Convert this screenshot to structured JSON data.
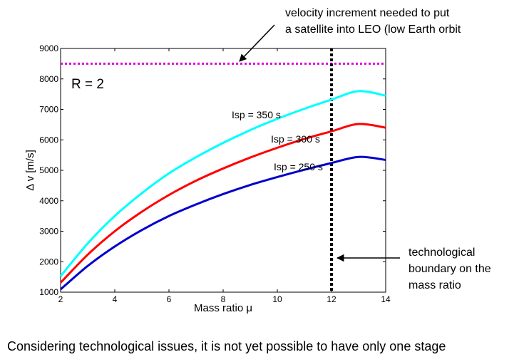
{
  "chart_data": {
    "type": "line",
    "xlabel": "Mass ratio μ",
    "ylabel": "Δ v [m/s]",
    "xlim": [
      2,
      14
    ],
    "ylim": [
      1000,
      9000
    ],
    "xticks": [
      2,
      4,
      6,
      8,
      10,
      12,
      14
    ],
    "yticks": [
      1000,
      2000,
      3000,
      4000,
      5000,
      6000,
      7000,
      8000,
      9000
    ],
    "grid": false,
    "parameter_label": "R = 2",
    "x": [
      2,
      3,
      4,
      5,
      6,
      7,
      8,
      9,
      10,
      11,
      12,
      13,
      14
    ],
    "series": [
      {
        "name": "Isp = 350 s",
        "color": "#00ffff",
        "values": [
          1525,
          2600,
          3500,
          4250,
          4900,
          5430,
          5900,
          6320,
          6690,
          7020,
          7320,
          7600,
          7450
        ]
      },
      {
        "name": "Isp = 300 s",
        "color": "#ff0000",
        "values": [
          1310,
          2230,
          3000,
          3640,
          4190,
          4660,
          5060,
          5420,
          5740,
          6030,
          6280,
          6520,
          6400
        ]
      },
      {
        "name": "Isp = 250 s",
        "color": "#0000cc",
        "values": [
          1090,
          1860,
          2500,
          3040,
          3500,
          3880,
          4220,
          4520,
          4780,
          5020,
          5240,
          5440,
          5340
        ]
      }
    ],
    "reference_lines": [
      {
        "orientation": "horizontal",
        "value": 8500,
        "color": "#dd00dd",
        "style": "dotted",
        "annotation": "velocity increment needed to put a satellite into LEO (low Earth orbit)",
        "annotation_lines": [
          "velocity increment needed to put",
          "a satellite into LEO (low Earth orbit"
        ]
      },
      {
        "orientation": "vertical",
        "value": 12,
        "color": "#000000",
        "style": "dotted",
        "annotation": "technological boundary on the mass ratio",
        "annotation_lines": [
          "technological",
          "boundary on the",
          "mass ratio"
        ]
      }
    ]
  },
  "caption": "Considering technological issues, it is not yet possible to have only one stage"
}
